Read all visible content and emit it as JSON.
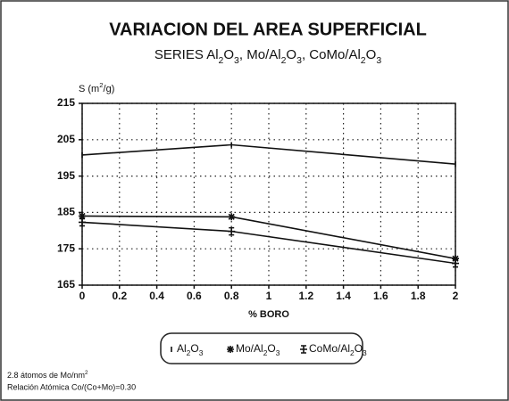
{
  "chart_data": {
    "type": "line",
    "title": "VARIACION DEL AREA SUPERFICIAL",
    "subtitle": "SERIES Al2O3, Mo/Al2O3, CoMo/Al2O3",
    "y_label": "S (m2/g)",
    "x_label": "% BORO",
    "x": [
      0,
      0.8,
      2
    ],
    "series": [
      {
        "name": "Al2O3",
        "color": "#111111",
        "marker": "tick",
        "values": [
          200.8,
          203.6,
          198.3
        ]
      },
      {
        "name": "Mo/Al2O3",
        "color": "#111111",
        "marker": "asterisk",
        "values": [
          184,
          183.8,
          172.3
        ]
      },
      {
        "name": "CoMo/Al2O3",
        "color": "#111111",
        "marker": "barred-cross",
        "values": [
          182.3,
          179.8,
          171
        ]
      }
    ],
    "xlim": [
      0,
      2
    ],
    "xticks": [
      0,
      0.2,
      0.4,
      0.6,
      0.8,
      1,
      1.2,
      1.4,
      1.6,
      1.8,
      2
    ],
    "ylim": [
      165,
      215
    ],
    "yticks": [
      165,
      175,
      185,
      195,
      205,
      215
    ],
    "grid": true,
    "legend": "bottom",
    "notes": [
      "2.8 átomos de Mo/nm2",
      "Relación Atómica Co/(Co+Mo)=0.30"
    ]
  }
}
